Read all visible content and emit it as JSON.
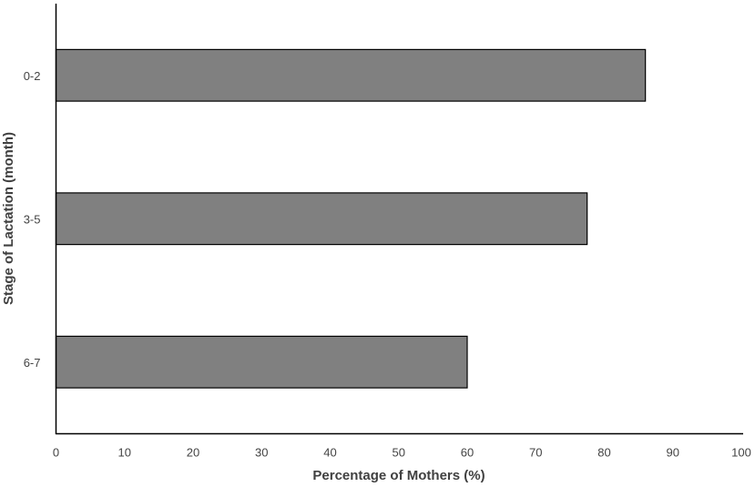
{
  "chart_data": {
    "type": "bar",
    "orientation": "horizontal",
    "categories": [
      "0-2",
      "3-5",
      "6-7"
    ],
    "values": [
      86,
      77.5,
      60
    ],
    "xlabel": "Percentage of Mothers (%)",
    "ylabel": "Stage of Lactation (month)",
    "xlim": [
      0,
      100
    ],
    "xticks": [
      0,
      10,
      20,
      30,
      40,
      50,
      60,
      70,
      80,
      90,
      100
    ],
    "grid": false,
    "legend": "none",
    "bar_color": "#808080",
    "bar_edge_color": "#000000"
  }
}
